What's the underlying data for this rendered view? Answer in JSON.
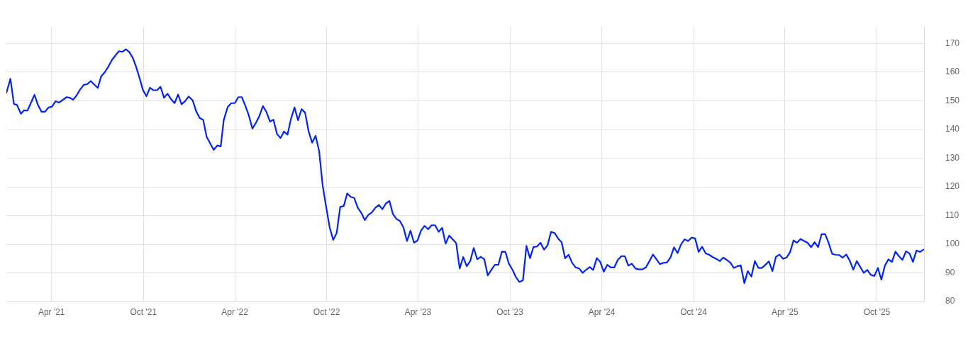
{
  "chart_data": {
    "type": "line",
    "x": [
      "2021-01-01",
      "2021-01-09",
      "2021-01-16",
      "2021-01-22",
      "2021-01-30",
      "2021-02-05",
      "2021-02-12",
      "2021-02-26",
      "2021-03-05",
      "2021-03-12",
      "2021-03-19",
      "2021-03-26",
      "2021-04-02",
      "2021-04-09",
      "2021-04-16",
      "2021-05-01",
      "2021-05-07",
      "2021-05-14",
      "2021-05-21",
      "2021-05-28",
      "2021-06-04",
      "2021-06-11",
      "2021-06-18",
      "2021-07-02",
      "2021-07-09",
      "2021-07-16",
      "2021-07-23",
      "2021-07-30",
      "2021-08-06",
      "2021-08-13",
      "2021-08-20",
      "2021-08-27",
      "2021-09-03",
      "2021-09-10",
      "2021-09-16",
      "2021-09-23",
      "2021-09-30",
      "2021-10-07",
      "2021-10-14",
      "2021-10-21",
      "2021-10-28",
      "2021-11-04",
      "2021-11-11",
      "2021-11-18",
      "2021-11-25",
      "2021-12-02",
      "2021-12-09",
      "2021-12-16",
      "2021-12-23",
      "2021-12-30",
      "2022-01-07",
      "2022-01-14",
      "2022-01-21",
      "2022-01-28",
      "2022-02-04",
      "2022-02-18",
      "2022-02-25",
      "2022-03-04",
      "2022-03-10",
      "2022-03-18",
      "2022-03-25",
      "2022-04-01",
      "2022-04-08",
      "2022-04-15",
      "2022-04-22",
      "2022-04-29",
      "2022-05-06",
      "2022-05-13",
      "2022-05-20",
      "2022-05-27",
      "2022-06-03",
      "2022-06-10",
      "2022-06-17",
      "2022-06-24",
      "2022-07-01",
      "2022-07-08",
      "2022-07-15",
      "2022-07-22",
      "2022-07-29",
      "2022-08-05",
      "2022-08-12",
      "2022-08-19",
      "2022-08-26",
      "2022-09-02",
      "2022-09-09",
      "2022-09-16",
      "2022-09-23",
      "2022-09-30",
      "2022-10-07",
      "2022-10-14",
      "2022-10-21",
      "2022-10-28",
      "2022-11-04",
      "2022-11-11",
      "2022-11-18",
      "2022-11-25",
      "2022-12-02",
      "2022-12-09",
      "2022-12-16",
      "2022-12-23",
      "2022-12-30",
      "2023-01-06",
      "2023-01-13",
      "2023-01-20",
      "2023-01-27",
      "2023-02-03",
      "2023-02-10",
      "2023-02-17",
      "2023-02-24",
      "2023-03-03",
      "2023-03-10",
      "2023-03-17",
      "2023-03-24",
      "2023-03-31",
      "2023-04-07",
      "2023-04-14",
      "2023-04-21",
      "2023-04-28",
      "2023-05-05",
      "2023-05-12",
      "2023-05-19",
      "2023-05-26",
      "2023-06-02",
      "2023-06-09",
      "2023-06-16",
      "2023-06-23",
      "2023-06-30",
      "2023-07-07",
      "2023-07-14",
      "2023-07-21",
      "2023-07-28",
      "2023-08-04",
      "2023-08-11",
      "2023-08-18",
      "2023-08-25",
      "2023-09-01",
      "2023-09-08",
      "2023-09-15",
      "2023-09-22",
      "2023-09-29",
      "2023-10-06",
      "2023-10-13",
      "2023-10-20",
      "2023-10-27",
      "2023-11-03",
      "2023-11-10",
      "2023-11-17",
      "2023-11-24",
      "2023-12-01",
      "2023-12-08",
      "2023-12-15",
      "2023-12-22",
      "2023-12-29",
      "2024-01-05",
      "2024-01-12",
      "2024-01-19",
      "2024-01-26",
      "2024-02-02",
      "2024-02-09",
      "2024-02-16",
      "2024-02-23",
      "2024-03-01",
      "2024-03-08",
      "2024-03-15",
      "2024-03-22",
      "2024-03-29",
      "2024-04-05",
      "2024-04-12",
      "2024-04-19",
      "2024-04-26",
      "2024-05-03",
      "2024-05-10",
      "2024-05-17",
      "2024-05-24",
      "2024-05-31",
      "2024-06-07",
      "2024-06-14",
      "2024-06-21",
      "2024-06-28",
      "2024-07-05",
      "2024-07-12",
      "2024-07-19",
      "2024-07-26",
      "2024-08-02",
      "2024-08-09",
      "2024-08-16",
      "2024-08-23",
      "2024-08-30",
      "2024-09-06",
      "2024-09-13",
      "2024-09-20",
      "2024-09-27",
      "2024-10-04",
      "2024-10-11",
      "2024-10-18",
      "2024-10-25",
      "2024-11-01",
      "2024-11-08",
      "2024-11-15",
      "2024-11-22",
      "2024-11-29",
      "2024-12-06",
      "2024-12-13",
      "2024-12-20",
      "2024-12-27",
      "2025-01-03",
      "2025-01-10",
      "2025-01-17",
      "2025-01-24",
      "2025-01-31",
      "2025-02-07",
      "2025-02-14",
      "2025-02-21",
      "2025-02-28",
      "2025-03-07",
      "2025-03-14",
      "2025-03-21",
      "2025-03-28",
      "2025-04-04",
      "2025-04-11",
      "2025-04-18",
      "2025-04-25",
      "2025-05-02",
      "2025-05-09",
      "2025-05-16",
      "2025-05-23",
      "2025-05-30",
      "2025-06-06",
      "2025-06-13",
      "2025-06-20",
      "2025-06-27",
      "2025-07-04",
      "2025-07-11",
      "2025-07-18",
      "2025-07-25",
      "2025-08-01",
      "2025-08-08",
      "2025-08-15",
      "2025-08-22",
      "2025-08-29",
      "2025-09-05",
      "2025-09-12",
      "2025-09-19",
      "2025-09-26",
      "2025-10-03",
      "2025-10-10",
      "2025-10-17",
      "2025-10-24",
      "2025-10-31",
      "2025-11-07",
      "2025-11-14",
      "2025-11-21",
      "2025-11-28",
      "2025-12-05",
      "2025-12-12",
      "2025-12-19",
      "2025-12-26",
      "2026-01-02"
    ],
    "series": [
      {
        "color": "#0022ff",
        "values": [
          152.8,
          157.7,
          148.9,
          148.6,
          145.5,
          146.7,
          146.6,
          152.1,
          148.5,
          146.2,
          146.2,
          147.7,
          148.0,
          149.9,
          149.4,
          151.3,
          151.1,
          150.4,
          151.9,
          154.0,
          155.6,
          155.8,
          156.9,
          154.5,
          158.6,
          160.0,
          161.9,
          164.2,
          165.8,
          167.3,
          167.1,
          168.0,
          167.0,
          164.9,
          162.1,
          158.1,
          153.8,
          151.6,
          154.6,
          153.7,
          153.7,
          154.9,
          151.1,
          152.5,
          150.6,
          149.2,
          152.2,
          148.8,
          149.9,
          151.5,
          150.2,
          146.4,
          144.0,
          143.4,
          137.4,
          132.9,
          134.4,
          134.1,
          143.3,
          147.9,
          149.2,
          149.2,
          151.3,
          151.3,
          148.3,
          144.9,
          140.3,
          142.3,
          144.7,
          148.2,
          146.1,
          142.8,
          143.4,
          138.5,
          137.0,
          139.3,
          138.2,
          143.8,
          147.7,
          143.2,
          147.1,
          145.9,
          139.4,
          135.4,
          137.8,
          132.5,
          120.5,
          113.0,
          105.8,
          101.5,
          103.9,
          113.0,
          113.3,
          117.7,
          116.5,
          116.1,
          112.7,
          110.9,
          108.4,
          110.2,
          111.1,
          112.7,
          113.7,
          112.2,
          114.2,
          115.1,
          110.5,
          108.8,
          108.1,
          105.8,
          101.1,
          104.7,
          100.5,
          101.3,
          104.7,
          106.4,
          105.2,
          106.6,
          106.6,
          104.3,
          105.7,
          100.2,
          103.0,
          101.7,
          100.4,
          91.5,
          95.5,
          92.3,
          94.1,
          98.7,
          94.7,
          95.6,
          94.7,
          89.1,
          91.0,
          92.8,
          92.8,
          97.4,
          97.3,
          93.2,
          91.1,
          88.5,
          86.8,
          87.4,
          99.4,
          95.1,
          99.0,
          99.2,
          100.5,
          98.1,
          99.6,
          104.3,
          103.9,
          102.0,
          100.7,
          95.1,
          96.3,
          93.5,
          91.9,
          91.5,
          90.0,
          91.1,
          92.0,
          91.0,
          95.1,
          93.8,
          90.4,
          92.8,
          91.9,
          91.9,
          94.5,
          95.8,
          95.8,
          92.5,
          93.2,
          91.5,
          91.2,
          91.2,
          91.9,
          94.1,
          96.4,
          94.7,
          93.0,
          93.5,
          93.6,
          95.4,
          98.9,
          96.9,
          99.9,
          101.7,
          101.1,
          102.3,
          102.0,
          97.3,
          99.1,
          96.8,
          96.3,
          95.5,
          94.9,
          94.1,
          95.3,
          94.5,
          93.6,
          91.7,
          92.3,
          92.6,
          86.4,
          90.6,
          88.7,
          94.1,
          91.7,
          91.7,
          92.8,
          94.0,
          90.6,
          95.6,
          96.4,
          94.9,
          95.3,
          97.2,
          101.3,
          100.5,
          101.8,
          101.1,
          100.5,
          98.9,
          100.7,
          99.0,
          103.5,
          103.5,
          100.4,
          96.6,
          96.3,
          96.2,
          95.3,
          96.4,
          94.3,
          91.1,
          94.1,
          92.0,
          90.0,
          91.0,
          89.3,
          88.9,
          91.7,
          87.6,
          92.5,
          94.7,
          93.8,
          97.4,
          95.8,
          94.5,
          97.5,
          96.8,
          93.8,
          97.8,
          97.3,
          98.1
        ]
      }
    ],
    "xlim": [
      "2021-01-01",
      "2026-01-03"
    ],
    "xticks": [
      {
        "value": "2021-04-01",
        "label": "Apr '21"
      },
      {
        "value": "2021-10-01",
        "label": "Oct '21"
      },
      {
        "value": "2022-04-01",
        "label": "Apr '22"
      },
      {
        "value": "2022-10-01",
        "label": "Oct '22"
      },
      {
        "value": "2023-04-01",
        "label": "Apr '23"
      },
      {
        "value": "2023-10-01",
        "label": "Oct '23"
      },
      {
        "value": "2024-04-01",
        "label": "Apr '24"
      },
      {
        "value": "2024-10-01",
        "label": "Oct '24"
      },
      {
        "value": "2025-04-01",
        "label": "Apr '25"
      },
      {
        "value": "2025-10-01",
        "label": "Oct '25"
      }
    ],
    "ylim": [
      80,
      176
    ],
    "yticks": [
      80,
      90,
      100,
      110,
      120,
      130,
      140,
      150,
      160,
      170
    ],
    "grid": true,
    "marker": "none",
    "line_style": "solid"
  }
}
